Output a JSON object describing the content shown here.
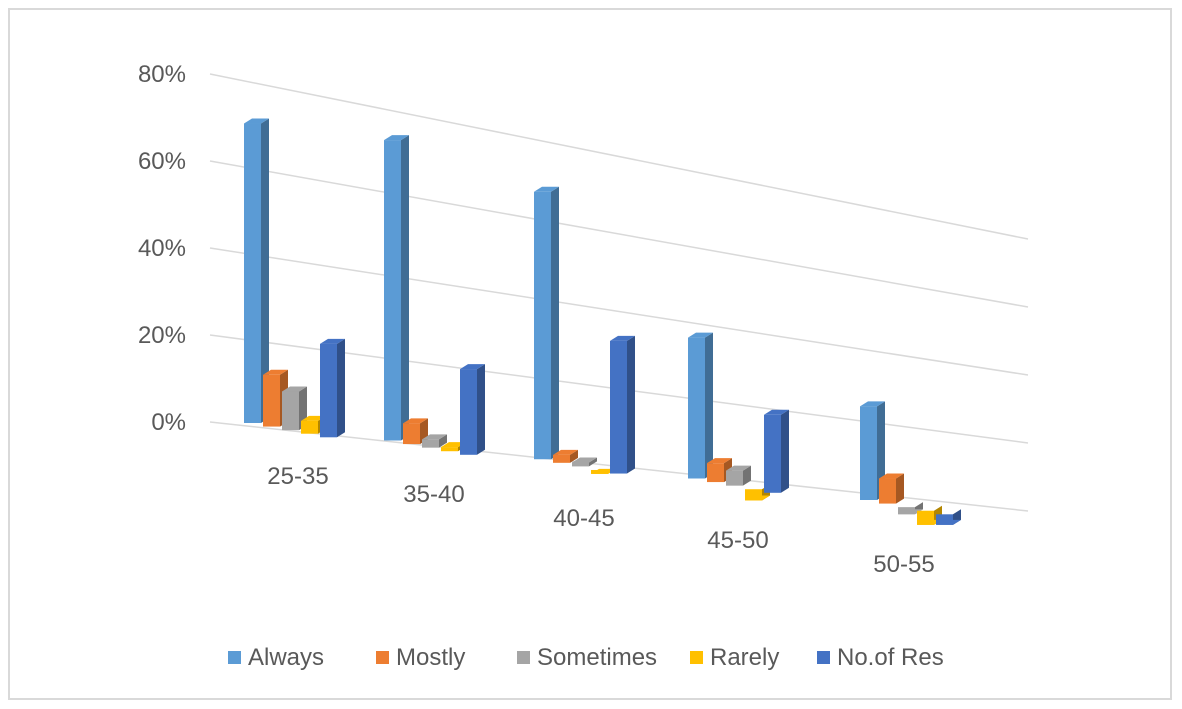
{
  "chart_data": {
    "type": "bar",
    "categories": [
      "25-35",
      "35-40",
      "40-45",
      "45-50",
      "50-55"
    ],
    "series": [
      {
        "name": "Always",
        "values": [
          69,
          72,
          67,
          37,
          26
        ],
        "color": "#5b9bd5"
      },
      {
        "name": "Mostly",
        "values": [
          12,
          5,
          2,
          5,
          7
        ],
        "color": "#ed7d31"
      },
      {
        "name": "Sometimes",
        "values": [
          9,
          2,
          1,
          4,
          -2
        ],
        "color": "#a5a5a5"
      },
      {
        "name": "Rarely",
        "values": [
          3,
          1,
          -1,
          -3,
          -4
        ],
        "color": "#ffc000"
      },
      {
        "name": "No.of Res",
        "values": [
          22,
          21,
          34,
          21,
          -3
        ],
        "color": "#4472c4"
      }
    ],
    "y_ticks": [
      "0%",
      "20%",
      "40%",
      "60%",
      "80%"
    ],
    "ylim": [
      0,
      80
    ],
    "grid": true,
    "legend_position": "bottom",
    "style": "3d-clustered-column"
  }
}
